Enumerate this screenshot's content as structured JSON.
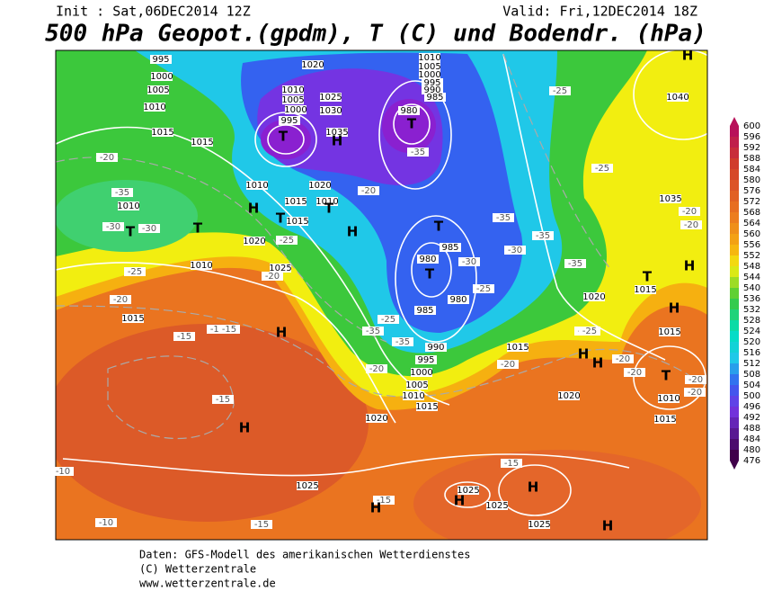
{
  "header": {
    "init": "Init : Sat,06DEC2014 12Z",
    "valid": "Valid: Fri,12DEC2014 18Z",
    "title": "500 hPa Geopot.(gpdm), T (C) und Bodendr. (hPa)"
  },
  "footer": {
    "line1": "Daten: GFS-Modell des amerikanischen Wetterdienstes",
    "line2": "(C) Wetterzentrale",
    "line3": "www.wetterzentrale.de"
  },
  "colorbar": {
    "labels": [
      600,
      596,
      592,
      588,
      584,
      580,
      576,
      572,
      568,
      564,
      560,
      556,
      552,
      548,
      544,
      540,
      536,
      532,
      528,
      524,
      520,
      516,
      512,
      508,
      504,
      500,
      496,
      492,
      488,
      484,
      480,
      476
    ]
  },
  "map": {
    "isobar_labels": [
      "995",
      "1020",
      "1010",
      "1005",
      "1000",
      "995",
      "990",
      "985",
      "1000",
      "1005",
      "1010",
      "1015",
      "1010",
      "1005",
      "1000",
      "995",
      "1025",
      "1030",
      "1035",
      "980",
      "1040",
      "1015",
      "1035",
      "1010",
      "1015",
      "1020",
      "1010",
      "1015",
      "1020",
      "1010",
      "1025",
      "1015",
      "985",
      "980",
      "985",
      "980",
      "990",
      "995",
      "1000",
      "1005",
      "1010",
      "1015",
      "1020",
      "1015",
      "1020",
      "1020",
      "1015",
      "1015",
      "1010",
      "1015",
      "1025",
      "1025",
      "1025",
      "1025",
      "1010"
    ],
    "temperature_labels": [
      "-20",
      "-35",
      "-30",
      "-30",
      "-25",
      "-20",
      "-25",
      "-20",
      "-35",
      "-35",
      "-30",
      "-35",
      "-30",
      "-35",
      "-25",
      "-25",
      "-25",
      "-20",
      "-20",
      "-15",
      "-15",
      "-15",
      "-15",
      "-20",
      "-35",
      "-35",
      "-25",
      "-20",
      "-20",
      "-20",
      "-20",
      "-20",
      "-20",
      "-20",
      "-15",
      "-15",
      "-15",
      "-10",
      "-10",
      "-25"
    ],
    "centers": [
      "H",
      "T",
      "H",
      "T",
      "T",
      "T",
      "H",
      "T",
      "T",
      "H",
      "T",
      "T",
      "H",
      "T",
      "H",
      "H",
      "H",
      "T",
      "H",
      "H",
      "H",
      "H",
      "H",
      "H"
    ]
  }
}
